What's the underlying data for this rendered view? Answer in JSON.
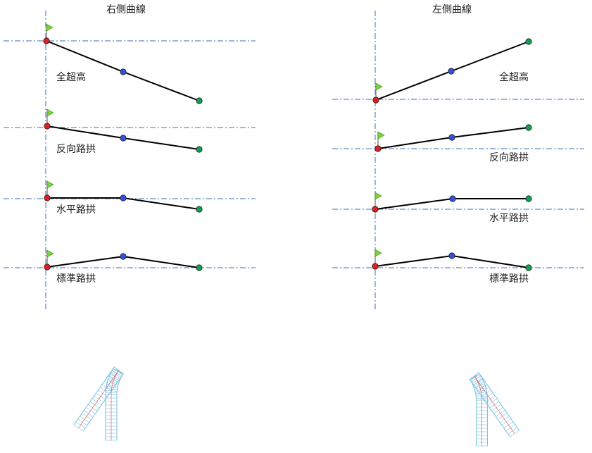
{
  "panels": [
    {
      "title": "右側曲線",
      "cases": [
        {
          "label": "全超高"
        },
        {
          "label": "反向路拱"
        },
        {
          "label": "水平路拱"
        },
        {
          "label": "標準路拱"
        }
      ]
    },
    {
      "title": "左側曲線",
      "cases": [
        {
          "label": "全超高"
        },
        {
          "label": "反向路拱"
        },
        {
          "label": "水平路拱"
        },
        {
          "label": "標準路拱"
        }
      ]
    }
  ],
  "colors": {
    "axis": "#3a6fb0",
    "profile_line": "#000000",
    "edge_point": "#e02020",
    "mid_point": "#3050e0",
    "end_point": "#10a050",
    "flag": "#7ad040",
    "road": "#9fd3ea",
    "road_center": "#e04040"
  },
  "icons": {
    "flag": "flag-icon",
    "point": "circle-marker"
  }
}
